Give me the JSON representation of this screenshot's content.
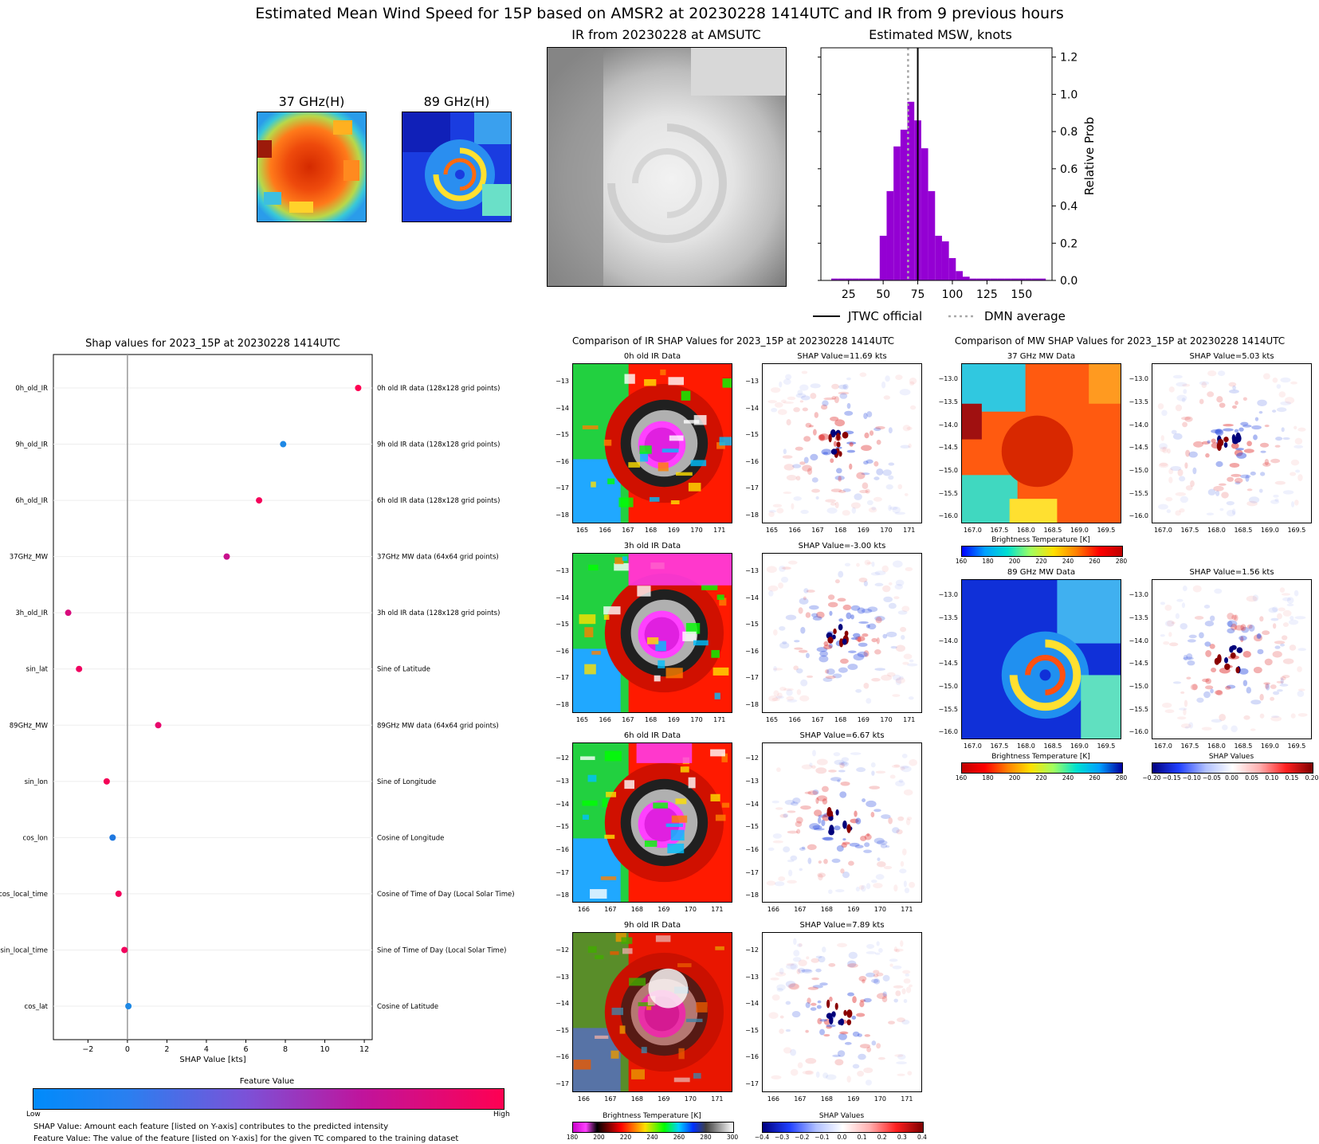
{
  "title": "Estimated Mean Wind Speed for 15P based on AMSR2 at 20230228 1414UTC and IR from 9 previous hours",
  "top_panels": {
    "mw37_title": "37 GHz(H)",
    "mw89_title": "89 GHz(H)",
    "ir_title": "IR from 20230228 at  AMSUTC"
  },
  "legend": {
    "jtwc": "JTWC official",
    "dmn": "DMN average"
  },
  "shap_note1": "SHAP Value: Amount each feature [listed on Y-axis] contributes to the predicted intensity",
  "shap_note2": "Feature Value: The value of the feature [listed on Y-axis] for the given TC compared to the training dataset",
  "ir_comparison_title": "Comparison of IR SHAP Values for 2023_15P at 20230228 1414UTC",
  "mw_comparison_title": "Comparison of MW SHAP Values for 2023_15P at 20230228 1414UTC",
  "ir_rows": [
    {
      "data_title": "0h old IR Data",
      "shap_title": "SHAP Value=11.69 kts",
      "lat_ticks": [
        "-13",
        "-14",
        "-15",
        "-16",
        "-17",
        "-18"
      ],
      "lon_ticks": [
        "165",
        "166",
        "167",
        "168",
        "169",
        "170",
        "171"
      ]
    },
    {
      "data_title": "3h old IR Data",
      "shap_title": "SHAP Value=-3.00 kts",
      "lat_ticks": [
        "-13",
        "-14",
        "-15",
        "-16",
        "-17",
        "-18"
      ],
      "lon_ticks": [
        "165",
        "166",
        "167",
        "168",
        "169",
        "170",
        "171"
      ]
    },
    {
      "data_title": "6h old IR Data",
      "shap_title": "SHAP Value=6.67 kts",
      "lat_ticks": [
        "-12",
        "-13",
        "-14",
        "-15",
        "-16",
        "-17",
        "-18"
      ],
      "lon_ticks": [
        "166",
        "167",
        "168",
        "169",
        "170",
        "171"
      ]
    },
    {
      "data_title": "9h old IR Data",
      "shap_title": "SHAP Value=7.89 kts",
      "lat_ticks": [
        "-12",
        "-13",
        "-14",
        "-15",
        "-16",
        "-17"
      ],
      "lon_ticks": [
        "166",
        "167",
        "168",
        "169",
        "170",
        "171"
      ]
    }
  ],
  "mw_rows": [
    {
      "data_title": "37 GHz MW Data",
      "shap_title": "SHAP Value=5.03 kts",
      "lat_ticks": [
        "-13.0",
        "-13.5",
        "-14.0",
        "-14.5",
        "-15.0",
        "-15.5",
        "-16.0"
      ],
      "lon_ticks": [
        "167.0",
        "167.5",
        "168.0",
        "168.5",
        "169.0",
        "169.5"
      ]
    },
    {
      "data_title": "89 GHz MW Data",
      "shap_title": "SHAP Value=1.56 kts",
      "lat_ticks": [
        "-13.0",
        "-13.5",
        "-14.0",
        "-14.5",
        "-15.0",
        "-15.5",
        "-16.0"
      ],
      "lon_ticks": [
        "167.0",
        "167.5",
        "168.0",
        "168.5",
        "169.0",
        "169.5"
      ]
    }
  ],
  "colorbars": {
    "mw37": {
      "label": "Brightness Temperature [K]",
      "ticks": [
        "160",
        "180",
        "200",
        "220",
        "240",
        "260",
        "280"
      ]
    },
    "mw89": {
      "label": "Brightness Temperature [K]",
      "ticks": [
        "160",
        "180",
        "200",
        "220",
        "240",
        "260",
        "280"
      ]
    },
    "mw_shap": {
      "label": "SHAP Values",
      "ticks": [
        "−0.20",
        "−0.15",
        "−0.10",
        "−0.05",
        "0.00",
        "0.05",
        "0.10",
        "0.15",
        "0.20"
      ]
    },
    "ir_bt": {
      "label": "Brightness Temperature [K]",
      "ticks": [
        "180",
        "200",
        "220",
        "240",
        "260",
        "280",
        "300"
      ]
    },
    "ir_shap": {
      "label": "SHAP Values",
      "ticks": [
        "−0.4",
        "−0.3",
        "−0.2",
        "−0.1",
        "0.0",
        "0.1",
        "0.2",
        "0.3",
        "0.4"
      ]
    }
  },
  "colors": {
    "dmn_line": "#aaaaaa",
    "jtwc_line": "#000000",
    "bars": "#9400d3",
    "low": "#008bfb",
    "high": "#ff0052"
  },
  "chart_data": [
    {
      "type": "bar",
      "title": "Estimated MSW, knots",
      "ylabel": "Relative Prob",
      "xlim": [
        5,
        172
      ],
      "ylim": [
        0,
        1.25
      ],
      "x_ticks": [
        25,
        50,
        75,
        100,
        125,
        150
      ],
      "y_ticks": [
        "0.0",
        "0.2",
        "0.4",
        "0.6",
        "0.8",
        "1.0",
        "1.2"
      ],
      "bin_width": 5,
      "bins": [
        [
          15,
          0.01
        ],
        [
          20,
          0.01
        ],
        [
          25,
          0.01
        ],
        [
          30,
          0.01
        ],
        [
          35,
          0.01
        ],
        [
          40,
          0.01
        ],
        [
          45,
          0.01
        ],
        [
          50,
          0.24
        ],
        [
          55,
          0.48
        ],
        [
          60,
          0.72
        ],
        [
          65,
          0.81
        ],
        [
          70,
          0.96
        ],
        [
          75,
          0.86
        ],
        [
          80,
          0.71
        ],
        [
          85,
          0.48
        ],
        [
          90,
          0.24
        ],
        [
          95,
          0.21
        ],
        [
          100,
          0.12
        ],
        [
          105,
          0.05
        ],
        [
          110,
          0.02
        ],
        [
          115,
          0.01
        ],
        [
          120,
          0.01
        ],
        [
          125,
          0.01
        ],
        [
          130,
          0.01
        ],
        [
          135,
          0.01
        ],
        [
          140,
          0.01
        ],
        [
          145,
          0.01
        ],
        [
          150,
          0.01
        ],
        [
          155,
          0.01
        ],
        [
          160,
          0.01
        ],
        [
          165,
          0.01
        ]
      ],
      "jtwc_official": 75,
      "dmn_average": 68,
      "legend": [
        "JTWC official",
        "DMN average"
      ]
    },
    {
      "type": "scatter",
      "title": "Shap values for 2023_15P at 20230228 1414UTC",
      "xlabel": "SHAP Value [kts]",
      "xlim": [
        -3.75,
        12.4
      ],
      "x_ticks": [
        -2,
        0,
        2,
        4,
        6,
        8,
        10,
        12
      ],
      "colorbar_label": "Feature Value",
      "colorbar_low": "Low",
      "colorbar_high": "High",
      "features": [
        {
          "name": "0h_old_IR",
          "desc": "0h old IR data (128x128 grid points)",
          "shap": 11.69,
          "feature_value": 1.0,
          "color": "#ff0052"
        },
        {
          "name": "9h_old_IR",
          "desc": "9h old IR data (128x128 grid points)",
          "shap": 7.89,
          "feature_value": 0.0,
          "color": "#1e88e5"
        },
        {
          "name": "6h_old_IR",
          "desc": "6h old IR data (128x128 grid points)",
          "shap": 6.67,
          "feature_value": 0.95,
          "color": "#f5005a"
        },
        {
          "name": "37GHz_MW",
          "desc": "37GHz MW data (64x64 grid points)",
          "shap": 5.03,
          "feature_value": 0.8,
          "color": "#c8108c"
        },
        {
          "name": "3h_old_IR",
          "desc": "3h old IR data (128x128 grid points)",
          "shap": -3.0,
          "feature_value": 0.85,
          "color": "#d80a7c"
        },
        {
          "name": "sin_lat",
          "desc": "Sine of Latitude",
          "shap": -2.45,
          "feature_value": 0.95,
          "color": "#f00060"
        },
        {
          "name": "89GHz_MW",
          "desc": "89GHz MW data (64x64 grid points)",
          "shap": 1.56,
          "feature_value": 0.95,
          "color": "#e8066c"
        },
        {
          "name": "sin_lon",
          "desc": "Sine of Longitude",
          "shap": -1.05,
          "feature_value": 0.97,
          "color": "#f40056"
        },
        {
          "name": "cos_lon",
          "desc": "Cosine of Longitude",
          "shap": -0.75,
          "feature_value": 0.05,
          "color": "#1e78e0"
        },
        {
          "name": "cos_local_time",
          "desc": "Cosine of Time of Day (Local Solar Time)",
          "shap": -0.45,
          "feature_value": 0.97,
          "color": "#f2005c"
        },
        {
          "name": "sin_local_time",
          "desc": "Sine of Time of Day (Local Solar Time)",
          "shap": -0.15,
          "feature_value": 0.97,
          "color": "#f2005c"
        },
        {
          "name": "cos_lat",
          "desc": "Cosine of Latitude",
          "shap": 0.05,
          "feature_value": 0.0,
          "color": "#1e88e5"
        }
      ]
    }
  ]
}
